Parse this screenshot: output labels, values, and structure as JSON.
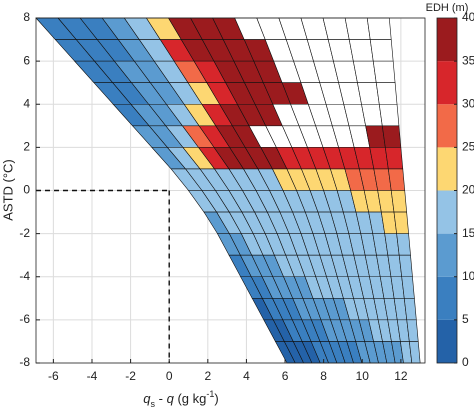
{
  "chart_data": {
    "type": "mesh",
    "xlabel": [
      "q",
      "s",
      " - ",
      "q",
      " (g kg",
      "-1",
      ")"
    ],
    "ylabel": "ASTD (°C)",
    "xlim": [
      -6.9,
      13.25
    ],
    "ylim": [
      -8,
      8
    ],
    "xticks": [
      -6,
      -4,
      -2,
      0,
      2,
      4,
      6,
      8,
      10,
      12
    ],
    "yticks": [
      -8,
      -6,
      -4,
      -2,
      0,
      2,
      4,
      6,
      8
    ],
    "grid": true,
    "crosshair": {
      "x": 0,
      "y": 0
    },
    "y_edges": [
      8,
      7,
      6,
      5,
      4,
      3,
      2,
      1,
      0,
      -1,
      -2,
      -3,
      -4,
      -5,
      -6,
      -7,
      -8
    ],
    "x_left": [
      -6.9,
      -5.9,
      -4.9,
      -3.9,
      -2.9,
      -1.9,
      -0.9,
      0.1,
      1.0,
      1.8,
      2.5,
      3.1,
      3.7,
      4.3,
      4.9,
      5.5,
      6.1
    ],
    "x_right": [
      11.4,
      11.5,
      11.6,
      11.7,
      11.8,
      11.9,
      12.0,
      12.1,
      12.2,
      12.3,
      12.4,
      12.5,
      12.6,
      12.7,
      12.8,
      12.9,
      13.0
    ],
    "values": [
      [
        7,
        7,
        7,
        12,
        17,
        22,
        37,
        37,
        37,
        null,
        null,
        null,
        null,
        null,
        null,
        null
      ],
      [
        7,
        7,
        7,
        12,
        17,
        32,
        37,
        37,
        37,
        37,
        null,
        null,
        null,
        null,
        null,
        null
      ],
      [
        7,
        7,
        12,
        12,
        17,
        27,
        32,
        37,
        37,
        37,
        null,
        null,
        null,
        null,
        null,
        null
      ],
      [
        7,
        7,
        12,
        12,
        17,
        22,
        32,
        37,
        37,
        37,
        37,
        null,
        null,
        null,
        null,
        null
      ],
      [
        7,
        12,
        12,
        17,
        22,
        32,
        37,
        37,
        37,
        null,
        null,
        null,
        null,
        null,
        null,
        null
      ],
      [
        12,
        12,
        17,
        27,
        32,
        37,
        37,
        null,
        null,
        null,
        null,
        null,
        null,
        null,
        37,
        37
      ],
      [
        12,
        17,
        22,
        32,
        37,
        37,
        37,
        37,
        32,
        32,
        32,
        32,
        32,
        32,
        32,
        32
      ],
      [
        17,
        17,
        17,
        17,
        17,
        17,
        17,
        22,
        22,
        22,
        22,
        22,
        27,
        27,
        27,
        27
      ],
      [
        17,
        17,
        17,
        17,
        17,
        17,
        17,
        17,
        17,
        17,
        17,
        17,
        22,
        22,
        22,
        22
      ],
      [
        12,
        17,
        17,
        17,
        17,
        17,
        17,
        17,
        17,
        17,
        17,
        17,
        17,
        17,
        22,
        22
      ],
      [
        12,
        12,
        17,
        17,
        17,
        17,
        17,
        17,
        17,
        17,
        17,
        17,
        17,
        17,
        17,
        17
      ],
      [
        7,
        12,
        12,
        12,
        17,
        17,
        17,
        17,
        17,
        17,
        17,
        17,
        17,
        17,
        17,
        17
      ],
      [
        7,
        7,
        12,
        12,
        12,
        12,
        17,
        17,
        17,
        17,
        17,
        17,
        17,
        17,
        17,
        17
      ],
      [
        2,
        7,
        7,
        7,
        12,
        12,
        12,
        12,
        12,
        17,
        17,
        17,
        17,
        17,
        17,
        17
      ],
      [
        2,
        2,
        7,
        7,
        7,
        7,
        12,
        12,
        12,
        12,
        12,
        17,
        17,
        17,
        17,
        17
      ],
      [
        2,
        2,
        2,
        2,
        7,
        7,
        7,
        7,
        7,
        12,
        12,
        12,
        12,
        12,
        17,
        17
      ]
    ],
    "colorbar_label": "EDH (m)",
    "clim": [
      0,
      40
    ],
    "colorbar_ticks": [
      0,
      5,
      10,
      15,
      20,
      25,
      30,
      35,
      40
    ],
    "colors": [
      "#2462a8",
      "#3a7fc0",
      "#5b9bd0",
      "#94c3e6",
      "#fdd772",
      "#f26a48",
      "#d7262b",
      "#9b1b1e"
    ]
  }
}
